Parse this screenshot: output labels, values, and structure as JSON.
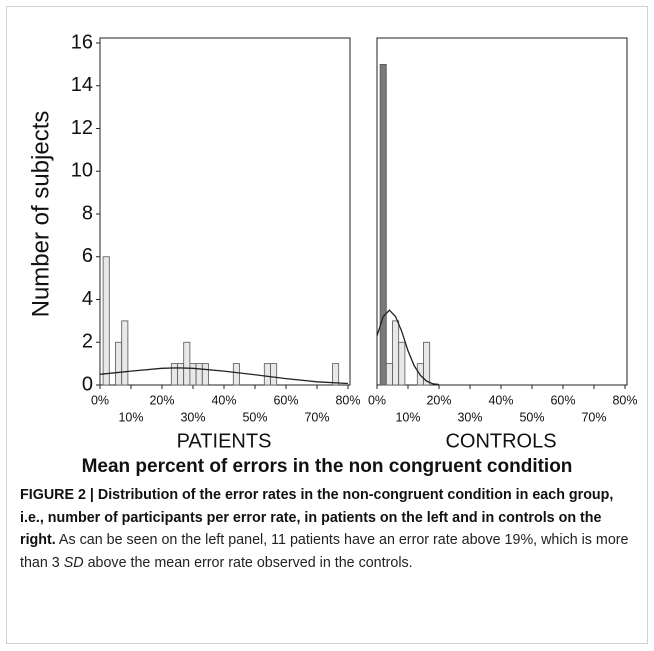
{
  "y_label": "Number of subjects",
  "axis_title": "Mean percent of errors in the non congruent condition",
  "chart_data": [
    {
      "type": "histogram",
      "xlabel": "PATIENTS",
      "bins": [
        1,
        3,
        5,
        7,
        9,
        11,
        13,
        15,
        17,
        19,
        21,
        23,
        25,
        27,
        29,
        31,
        33,
        35,
        37,
        39,
        41,
        43,
        45,
        47,
        49,
        51,
        53,
        55,
        57,
        59,
        61,
        63,
        65,
        67,
        69,
        71,
        73,
        75,
        77,
        79
      ],
      "counts": [
        6,
        0,
        2,
        3,
        0,
        0,
        0,
        0,
        0,
        0,
        0,
        1,
        1,
        2,
        1,
        1,
        1,
        0,
        0,
        0,
        0,
        1,
        0,
        0,
        0,
        0,
        1,
        1,
        0,
        0,
        0,
        0,
        0,
        0,
        0,
        0,
        0,
        1,
        0
      ],
      "color": "#e8e8e8",
      "fit": {
        "x": [
          0,
          10,
          20,
          25,
          30,
          40,
          50,
          60,
          70,
          80
        ],
        "y": [
          0.5,
          0.65,
          0.78,
          0.8,
          0.78,
          0.65,
          0.48,
          0.3,
          0.15,
          0.07
        ]
      },
      "xlim": [
        0,
        80
      ],
      "ylim": [
        0,
        16
      ],
      "xticks": [
        {
          "value": 0,
          "label": "0%"
        },
        {
          "value": 10,
          "label": "10%"
        },
        {
          "value": 20,
          "label": "20%"
        },
        {
          "value": 30,
          "label": "30%"
        },
        {
          "value": 40,
          "label": "40%"
        },
        {
          "value": 50,
          "label": "50%"
        },
        {
          "value": 60,
          "label": "60%"
        },
        {
          "value": 70,
          "label": "70%"
        },
        {
          "value": 80,
          "label": "80%"
        }
      ],
      "yticks": [
        0,
        2,
        4,
        6,
        8,
        10,
        12,
        14,
        16
      ]
    },
    {
      "type": "histogram",
      "xlabel": "CONTROLS",
      "bins": [
        1,
        3,
        5,
        7,
        9,
        11,
        13,
        15,
        17
      ],
      "counts": [
        15,
        1,
        3,
        2,
        0,
        0,
        1,
        2
      ],
      "colors": [
        "#7a7a7a",
        "#e8e8e8",
        "#e8e8e8",
        "#e8e8e8",
        "#e8e8e8",
        "#e8e8e8",
        "#e8e8e8",
        "#e8e8e8"
      ],
      "fit": {
        "x": [
          0,
          2,
          4,
          6,
          8,
          10,
          12,
          14,
          16,
          18,
          20
        ],
        "y": [
          2.3,
          3.2,
          3.5,
          3.2,
          2.5,
          1.6,
          0.9,
          0.45,
          0.18,
          0.06,
          0.02
        ]
      },
      "xlim": [
        0,
        80
      ],
      "ylim": [
        0,
        16
      ],
      "xticks": [
        {
          "value": 0,
          "label": "0%"
        },
        {
          "value": 10,
          "label": "10%"
        },
        {
          "value": 20,
          "label": "20%"
        },
        {
          "value": 30,
          "label": "30%"
        },
        {
          "value": 40,
          "label": "40%"
        },
        {
          "value": 50,
          "label": "50%"
        },
        {
          "value": 60,
          "label": "60%"
        },
        {
          "value": 70,
          "label": "70%"
        },
        {
          "value": 80,
          "label": "80%"
        }
      ]
    }
  ],
  "caption": {
    "bold": "FIGURE 2 | Distribution of the error rates in the non-congruent condition in each group, i.e., number of participants per error rate, in patients on the left and in controls on the right.",
    "text_1": " As can be seen on the left panel, 11 patients have an error rate above 19%, which is more than 3 ",
    "italic": "SD",
    "text_2": " above the mean error rate observed in the controls."
  }
}
